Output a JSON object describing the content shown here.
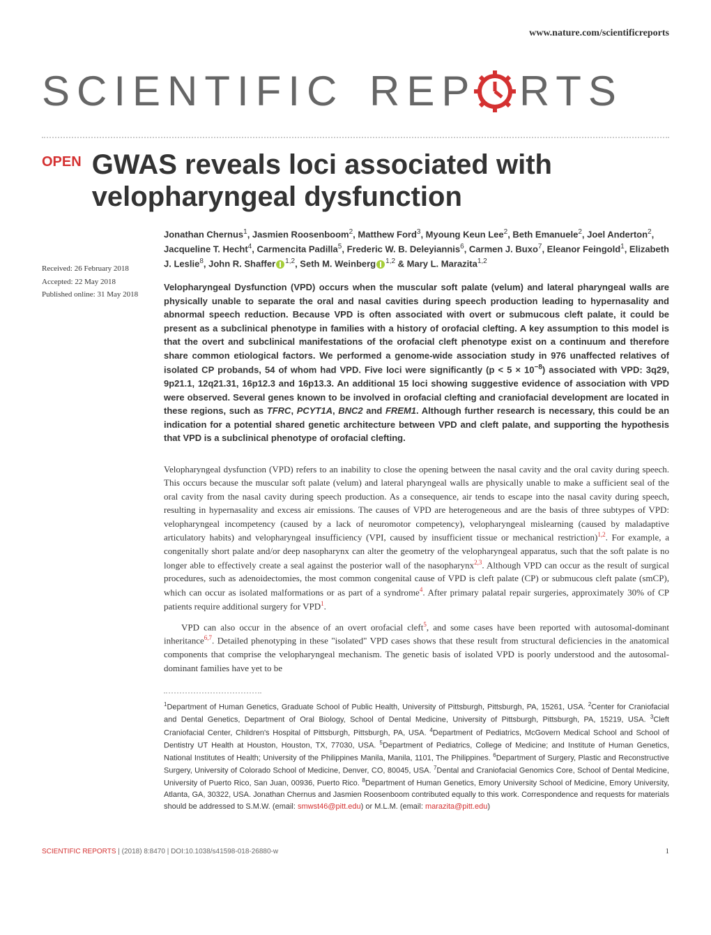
{
  "header": {
    "url": "www.nature.com/scientificreports"
  },
  "logo": {
    "text_left": "SCIENTIFIC",
    "text_right": "RTS",
    "text_color": "#666666",
    "gear_color": "#d43131"
  },
  "badge": {
    "label": "OPEN",
    "color": "#d43131"
  },
  "title": "GWAS reveals loci associated with velopharyngeal dysfunction",
  "dates": {
    "received": "Received: 26 February 2018",
    "accepted": "Accepted: 22 May 2018",
    "published": "Published online: 31 May 2018"
  },
  "authors_html": "Jonathan Chernus<sup>1</sup>, Jasmien Roosenboom<sup>2</sup>, Matthew Ford<sup>3</sup>, Myoung Keun Lee<sup>2</sup>, Beth Emanuele<sup>2</sup>, Joel Anderton<sup>2</sup>, Jacqueline T. Hecht<sup>4</sup>, Carmencita Padilla<sup>5</sup>, Frederic W. B. Deleyiannis<sup>6</sup>, Carmen J. Buxo<sup>7</sup>, Eleanor Feingold<sup>1</sup>, Elizabeth J. Leslie<sup>8</sup>, John R. Shaffer<span class=\"orcid\" data-name=\"orcid-icon\" data-interactable=\"false\"></span><sup>1,2</sup>, Seth M. Weinberg<span class=\"orcid\" data-name=\"orcid-icon\" data-interactable=\"false\"></span><sup>1,2</sup> & Mary L. Marazita<sup>1,2</sup>",
  "abstract_html": "Velopharyngeal Dysfunction (VPD) occurs when the muscular soft palate (velum) and lateral pharyngeal walls are physically unable to separate the oral and nasal cavities during speech production leading to hypernasality and abnormal speech reduction. Because VPD is often associated with overt or submucous cleft palate, it could be present as a subclinical phenotype in families with a history of orofacial clefting. A key assumption to this model is that the overt and subclinical manifestations of the orofacial cleft phenotype exist on a continuum and therefore share common etiological factors. We performed a genome-wide association study in 976 unaffected relatives of isolated CP probands, 54 of whom had VPD. Five loci were significantly (p < 5 × 10<sup>−8</sup>) associated with VPD: 3q29, 9p21.1, 12q21.31, 16p12.3 and 16p13.3. An additional 15 loci showing suggestive evidence of association with VPD were observed. Several genes known to be involved in orofacial clefting and craniofacial development are located in these regions, such as <em>TFRC</em>, <em>PCYT1A</em>, <em>BNC2</em> and <em>FREM1</em>. Although further research is necessary, this could be an indication for a potential shared genetic architecture between VPD and cleft palate, and supporting the hypothesis that VPD is a subclinical phenotype of orofacial clefting.",
  "paragraphs": [
    "Velopharyngeal dysfunction (VPD) refers to an inability to close the opening between the nasal cavity and the oral cavity during speech. This occurs because the muscular soft palate (velum) and lateral pharyngeal walls are physically unable to make a sufficient seal of the oral cavity from the nasal cavity during speech production. As a consequence, air tends to escape into the nasal cavity during speech, resulting in hypernasality and excess air emissions. The causes of VPD are heterogeneous and are the basis of three subtypes of VPD: velopharyngeal incompetency (caused by a lack of neuromotor competency), velopharyngeal mislearning (caused by maladaptive articulatory habits) and velopharyngeal insufficiency (VPI, caused by insufficient tissue or mechanical restriction)<sup>1,2</sup>. For example, a congenitally short palate and/or deep nasopharynx can alter the geometry of the velopharyngeal apparatus, such that the soft palate is no longer able to effectively create a seal against the posterior wall of the nasopharynx<sup>2,3</sup>. Although VPD can occur as the result of surgical procedures, such as adenoidectomies, the most common congenital cause of VPD is cleft palate (CP) or submucous cleft palate (smCP), which can occur as isolated malformations or as part of a syndrome<sup>4</sup>. After primary palatal repair surgeries, approximately 30% of CP patients require additional surgery for VPD<sup>1</sup>.",
    "VPD can also occur in the absence of an overt orofacial cleft<sup>5</sup>, and some cases have been reported with autosomal-dominant inheritance<sup>6,7</sup>. Detailed phenotyping in these \"isolated\" VPD cases shows that these result from structural deficiencies in the anatomical components that comprise the velopharyngeal mechanism. The genetic basis of isolated VPD is poorly understood and the autosomal-dominant families have yet to be"
  ],
  "affiliations_html": "<sup>1</sup>Department of Human Genetics, Graduate School of Public Health, University of Pittsburgh, Pittsburgh, PA, 15261, USA. <sup>2</sup>Center for Craniofacial and Dental Genetics, Department of Oral Biology, School of Dental Medicine, University of Pittsburgh, Pittsburgh, PA, 15219, USA. <sup>3</sup>Cleft Craniofacial Center, Children's Hospital of Pittsburgh, Pittsburgh, PA, USA. <sup>4</sup>Department of Pediatrics, McGovern Medical School and School of Dentistry UT Health at Houston, Houston, TX, 77030, USA. <sup>5</sup>Department of Pediatrics, College of Medicine; and Institute of Human Genetics, National Institutes of Health; University of the Philippines Manila, Manila, 1101, The Philippines. <sup>6</sup>Department of Surgery, Plastic and Reconstructive Surgery, University of Colorado School of Medicine, Denver, CO, 80045, USA. <sup>7</sup>Dental and Craniofacial Genomics Core, School of Dental Medicine, University of Puerto Rico, San Juan, 00936, Puerto Rico. <sup>8</sup>Department of Human Genetics, Emory University School of Medicine, Emory University, Atlanta, GA, 30322, USA. Jonathan Chernus and Jasmien Roosenboom contributed equally to this work. Correspondence and requests for materials should be addressed to S.M.W. (email: <a href=\"#\">smwst46@pitt.edu</a>) or M.L.M. (email: <a href=\"#\">marazita@pitt.edu</a>)",
  "footer": {
    "journal_label": "SCIENTIFIC REPORTS",
    "citation": " |  (2018) 8:8470  | DOI:10.1038/s41598-018-26880-w",
    "page": "1"
  },
  "style": {
    "accent_color": "#d43131",
    "text_color": "#333333",
    "muted_color": "#666666",
    "dotted_color": "#cccccc",
    "background": "#ffffff",
    "title_fontsize": 40,
    "abstract_fontsize": 13,
    "body_fontsize": 13,
    "affil_fontsize": 11
  }
}
